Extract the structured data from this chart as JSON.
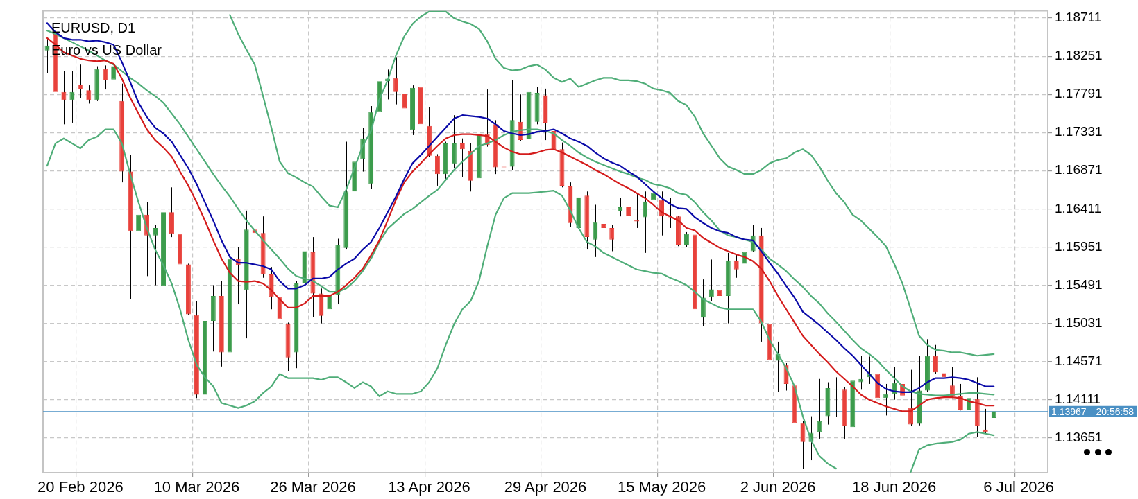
{
  "chart_data": {
    "type": "candlestick",
    "title": "EURUSD, D1",
    "subtitle": "Euro vs US Dollar",
    "categories": [
      null,
      null,
      null,
      null,
      "20 Feb 2026",
      null,
      null,
      null,
      null,
      null,
      null,
      null,
      null,
      null,
      null,
      null,
      null,
      null,
      "10 Mar 2026",
      null,
      null,
      null,
      null,
      null,
      null,
      null,
      null,
      null,
      null,
      null,
      null,
      null,
      "26 Mar 2026",
      null,
      null,
      null,
      null,
      null,
      null,
      null,
      null,
      null,
      null,
      null,
      null,
      null,
      "13 Apr 2026",
      null,
      null,
      null,
      null,
      null,
      null,
      null,
      null,
      null,
      null,
      null,
      null,
      null,
      "29 Apr 2026",
      null,
      null,
      null,
      null,
      null,
      null,
      null,
      null,
      null,
      null,
      null,
      null,
      null,
      "15 May 2026",
      null,
      null,
      null,
      null,
      null,
      null,
      null,
      null,
      null,
      null,
      null,
      null,
      null,
      "2 Jun 2026",
      null,
      null,
      null,
      null,
      null,
      null,
      null,
      null,
      null,
      null,
      null,
      null,
      null,
      "18 Jun 2026",
      null,
      null,
      null,
      null,
      null,
      null,
      null,
      null,
      null,
      null,
      null,
      null,
      null,
      null,
      "6 Jul 2026",
      null,
      null,
      null
    ],
    "ohlc": [
      [
        1.1832,
        1.1846,
        1.1805,
        1.1838
      ],
      [
        1.1852,
        1.1856,
        1.1781,
        1.1782
      ],
      [
        1.1782,
        1.1807,
        1.1743,
        1.1772
      ],
      [
        1.1772,
        1.1807,
        1.1745,
        1.1782
      ],
      [
        1.1791,
        1.1815,
        1.1775,
        1.1785
      ],
      [
        1.1784,
        1.179,
        1.1768,
        1.1772
      ],
      [
        1.1772,
        1.1813,
        1.1771,
        1.181
      ],
      [
        1.181,
        1.1814,
        1.1785,
        1.1796
      ],
      [
        1.1797,
        1.1822,
        1.179,
        1.1813
      ],
      [
        1.1771,
        1.1792,
        1.1673,
        1.1686
      ],
      [
        1.1686,
        1.1706,
        1.1532,
        1.1614
      ],
      [
        1.1614,
        1.1654,
        1.1577,
        1.1634
      ],
      [
        1.1634,
        1.1649,
        1.156,
        1.1609
      ],
      [
        1.1609,
        1.1622,
        1.1549,
        1.1618
      ],
      [
        1.1548,
        1.1639,
        1.1509,
        1.1637
      ],
      [
        1.1637,
        1.1667,
        1.1607,
        1.1611
      ],
      [
        1.1611,
        1.1646,
        1.1562,
        1.1574
      ],
      [
        1.1574,
        1.1575,
        1.1513,
        1.1514
      ],
      [
        1.1513,
        1.153,
        1.1413,
        1.1417
      ],
      [
        1.1417,
        1.1524,
        1.1415,
        1.1506
      ],
      [
        1.1506,
        1.1549,
        1.1469,
        1.1536
      ],
      [
        1.1536,
        1.1554,
        1.1451,
        1.1468
      ],
      [
        1.1468,
        1.1617,
        1.1445,
        1.1581
      ],
      [
        1.1581,
        1.1595,
        1.1526,
        1.1573
      ],
      [
        1.1543,
        1.1639,
        1.1485,
        1.1616
      ],
      [
        1.1616,
        1.1628,
        1.1558,
        1.1612
      ],
      [
        1.1612,
        1.1632,
        1.1558,
        1.1562
      ],
      [
        1.1562,
        1.1571,
        1.152,
        1.1535
      ],
      [
        1.1535,
        1.1545,
        1.1502,
        1.1508
      ],
      [
        1.1502,
        1.1504,
        1.1445,
        1.1462
      ],
      [
        1.1468,
        1.1554,
        1.1449,
        1.1552
      ],
      [
        1.1552,
        1.1628,
        1.1546,
        1.159
      ],
      [
        1.1589,
        1.1607,
        1.1511,
        1.1539
      ],
      [
        1.1539,
        1.1545,
        1.1503,
        1.1512
      ],
      [
        1.152,
        1.1571,
        1.1505,
        1.1537
      ],
      [
        1.1537,
        1.1605,
        1.1526,
        1.1598
      ],
      [
        1.1594,
        1.1722,
        1.1592,
        1.1662
      ],
      [
        1.1662,
        1.1724,
        1.1652,
        1.1698
      ],
      [
        1.1701,
        1.1739,
        1.1686,
        1.1726
      ],
      [
        1.1671,
        1.1765,
        1.1665,
        1.1758
      ],
      [
        1.1758,
        1.1811,
        1.1754,
        1.1795
      ],
      [
        1.1795,
        1.1809,
        1.1773,
        1.1798
      ],
      [
        1.1799,
        1.1824,
        1.1767,
        1.1782
      ],
      [
        1.178,
        1.185,
        1.1762,
        1.1762
      ],
      [
        1.1736,
        1.179,
        1.173,
        1.1787
      ],
      [
        1.1788,
        1.1791,
        1.172,
        1.1743
      ],
      [
        1.1741,
        1.1764,
        1.1704,
        1.1705
      ],
      [
        1.1705,
        1.1707,
        1.1669,
        1.1683
      ],
      [
        1.1683,
        1.1722,
        1.1675,
        1.172
      ],
      [
        1.1695,
        1.1754,
        1.169,
        1.172
      ],
      [
        1.172,
        1.1726,
        1.1679,
        1.1713
      ],
      [
        1.1711,
        1.172,
        1.1662,
        1.1675
      ],
      [
        1.1678,
        1.1741,
        1.1656,
        1.1731
      ],
      [
        1.1731,
        1.1785,
        1.1716,
        1.1718
      ],
      [
        1.1743,
        1.1748,
        1.1683,
        1.1691
      ],
      [
        1.1692,
        1.1713,
        1.1677,
        1.1691
      ],
      [
        1.1692,
        1.1796,
        1.1688,
        1.1748
      ],
      [
        1.1746,
        1.1779,
        1.1723,
        1.1724
      ],
      [
        1.1725,
        1.1786,
        1.1724,
        1.1782
      ],
      [
        1.1746,
        1.1788,
        1.1743,
        1.1781
      ],
      [
        1.1778,
        1.1786,
        1.1724,
        1.1745
      ],
      [
        1.1735,
        1.1739,
        1.1696,
        1.1713
      ],
      [
        1.1713,
        1.1721,
        1.1667,
        1.1669
      ],
      [
        1.1668,
        1.1673,
        1.1619,
        1.1624
      ],
      [
        1.1618,
        1.1658,
        1.1609,
        1.1655
      ],
      [
        1.1657,
        1.1662,
        1.1592,
        1.1607
      ],
      [
        1.1604,
        1.1646,
        1.1583,
        1.1625
      ],
      [
        1.1623,
        1.1635,
        1.1578,
        1.1618
      ],
      [
        1.1618,
        1.1622,
        1.159,
        1.1604
      ],
      [
        1.1638,
        1.1654,
        1.1632,
        1.1643
      ],
      [
        1.1643,
        1.1645,
        1.1618,
        1.1633
      ],
      [
        1.1628,
        1.166,
        1.1618,
        1.1626
      ],
      [
        1.1631,
        1.1662,
        1.1588,
        1.165
      ],
      [
        1.1652,
        1.1686,
        1.1626,
        1.166
      ],
      [
        1.1652,
        1.1662,
        1.1609,
        1.1632
      ],
      [
        1.1632,
        1.1654,
        1.1618,
        1.1631
      ],
      [
        1.1632,
        1.1633,
        1.1596,
        1.1598
      ],
      [
        1.1597,
        1.1613,
        1.1595,
        1.1611
      ],
      [
        1.161,
        1.1645,
        1.1518,
        1.152
      ],
      [
        1.151,
        1.1556,
        1.15,
        1.1534
      ],
      [
        1.1535,
        1.158,
        1.153,
        1.1544
      ],
      [
        1.1543,
        1.1574,
        1.1534,
        1.1536
      ],
      [
        1.1536,
        1.1588,
        1.1503,
        1.1579
      ],
      [
        1.1579,
        1.1586,
        1.1558,
        1.1568
      ],
      [
        1.1575,
        1.1622,
        1.1575,
        1.1589
      ],
      [
        1.159,
        1.1622,
        1.1589,
        1.1609
      ],
      [
        1.1609,
        1.1618,
        1.1481,
        1.1503
      ],
      [
        1.1502,
        1.153,
        1.1457,
        1.1459
      ],
      [
        1.1458,
        1.1481,
        1.142,
        1.1466
      ],
      [
        1.1453,
        1.1455,
        1.1422,
        1.143
      ],
      [
        1.1428,
        1.1439,
        1.1381,
        1.1383
      ],
      [
        1.1383,
        1.1385,
        1.1328,
        1.136
      ],
      [
        1.136,
        1.1391,
        1.1338,
        1.1371
      ],
      [
        1.1372,
        1.1436,
        1.1364,
        1.1385
      ],
      [
        1.1391,
        1.1432,
        1.1381,
        1.1425
      ],
      [
        1.1423,
        1.1438,
        1.139,
        1.1424
      ],
      [
        1.1423,
        1.1426,
        1.1364,
        1.1379
      ],
      [
        1.1378,
        1.1473,
        1.1377,
        1.1434
      ],
      [
        1.1432,
        1.1464,
        1.1423,
        1.1436
      ],
      [
        1.1438,
        1.1463,
        1.143,
        1.1442
      ],
      [
        1.1442,
        1.1453,
        1.1411,
        1.1413
      ],
      [
        1.1413,
        1.143,
        1.1392,
        1.1418
      ],
      [
        1.1418,
        1.145,
        1.1411,
        1.1431
      ],
      [
        1.143,
        1.1464,
        1.1413,
        1.1416
      ],
      [
        1.1401,
        1.1447,
        1.1379,
        1.1381
      ],
      [
        1.1382,
        1.1464,
        1.138,
        1.1422
      ],
      [
        1.1422,
        1.1484,
        1.142,
        1.1464
      ],
      [
        1.1464,
        1.1477,
        1.1442,
        1.1444
      ],
      [
        1.1443,
        1.1453,
        1.1428,
        1.1438
      ],
      [
        1.1428,
        1.145,
        1.1413,
        1.1415
      ],
      [
        1.1415,
        1.143,
        1.1398,
        1.1399
      ],
      [
        1.1399,
        1.1423,
        1.1398,
        1.1413
      ],
      [
        1.1412,
        1.1438,
        1.1366,
        1.1379
      ],
      [
        1.1375,
        1.14,
        1.137,
        1.1372
      ],
      [
        1.1389,
        1.1399,
        1.1387,
        1.1397
      ],
      null,
      null,
      null,
      null,
      null,
      null
    ],
    "colors": [
      "#3c9c4c",
      "#e8413b",
      "#e8413b",
      "#3c9c4c",
      "#e8413b",
      "#e8413b",
      "#3c9c4c",
      "#e8413b",
      "#3c9c4c",
      "#e8413b",
      "#e8413b",
      "#3c9c4c",
      "#e8413b",
      "#3c9c4c",
      "#3c9c4c",
      "#e8413b",
      "#e8413b",
      "#e8413b",
      "#e8413b",
      "#3c9c4c",
      "#3c9c4c",
      "#e8413b",
      "#3c9c4c",
      "#e8413b",
      "#3c9c4c",
      "#e8413b",
      "#e8413b",
      "#e8413b",
      "#e8413b",
      "#e8413b",
      "#3c9c4c",
      "#3c9c4c",
      "#e8413b",
      "#e8413b",
      "#3c9c4c",
      "#3c9c4c",
      "#3c9c4c",
      "#3c9c4c",
      "#3c9c4c",
      "#3c9c4c",
      "#3c9c4c",
      "#3c9c4c",
      "#e8413b",
      "#e8413b",
      "#3c9c4c",
      "#e8413b",
      "#e8413b",
      "#e8413b",
      "#3c9c4c",
      "#3c9c4c",
      "#e8413b",
      "#e8413b",
      "#3c9c4c",
      "#e8413b",
      "#e8413b",
      "#e8413b",
      "#3c9c4c",
      "#e8413b",
      "#3c9c4c",
      "#3c9c4c",
      "#e8413b",
      "#e8413b",
      "#e8413b",
      "#e8413b",
      "#3c9c4c",
      "#e8413b",
      "#3c9c4c",
      "#e8413b",
      "#e8413b",
      "#3c9c4c",
      "#e8413b",
      "#e8413b",
      "#3c9c4c",
      "#3c9c4c",
      "#e8413b",
      "#e8413b",
      "#e8413b",
      "#3c9c4c",
      "#e8413b",
      "#3c9c4c",
      "#3c9c4c",
      "#e8413b",
      "#3c9c4c",
      "#e8413b",
      "#3c9c4c",
      "#3c9c4c",
      "#e8413b",
      "#e8413b",
      "#3c9c4c",
      "#e8413b",
      "#e8413b",
      "#e8413b",
      "#3c9c4c",
      "#3c9c4c",
      "#3c9c4c",
      "#3c9c4c",
      "#e8413b",
      "#3c9c4c",
      "#3c9c4c",
      "#3c9c4c",
      "#e8413b",
      "#3c9c4c",
      "#3c9c4c",
      "#e8413b",
      "#e8413b",
      "#3c9c4c",
      "#3c9c4c",
      "#e8413b",
      "#e8413b",
      "#e8413b",
      "#e8413b",
      "#3c9c4c",
      "#e8413b",
      "#e8413b",
      "#3c9c4c",
      null,
      null,
      null,
      null,
      null,
      null
    ],
    "series": [
      {
        "type": "line",
        "color": "#0a0aa8",
        "values": [
          1.1865,
          1.1854,
          1.1847,
          1.1845,
          1.1845,
          1.1843,
          1.1844,
          1.1842,
          1.1839,
          1.1818,
          1.1794,
          1.1769,
          1.1752,
          1.1739,
          1.1732,
          1.1722,
          1.1706,
          1.169,
          1.1671,
          1.1649,
          1.1627,
          1.1603,
          1.1583,
          1.1576,
          1.1576,
          1.1574,
          1.1572,
          1.1568,
          1.1554,
          1.1545,
          1.1545,
          1.1549,
          1.1557,
          1.1557,
          1.1559,
          1.1568,
          1.1575,
          1.1581,
          1.1592,
          1.1601,
          1.1618,
          1.1637,
          1.1656,
          1.1677,
          1.1696,
          1.1706,
          1.1717,
          1.1728,
          1.1739,
          1.175,
          1.1754,
          1.1753,
          1.1752,
          1.175,
          1.1743,
          1.1735,
          1.1732,
          1.173,
          1.1731,
          1.1734,
          1.1735,
          1.1737,
          1.1732,
          1.1726,
          1.1722,
          1.1717,
          1.1709,
          1.1702,
          1.1697,
          1.1693,
          1.1686,
          1.168,
          1.1671,
          1.1662,
          1.1654,
          1.1647,
          1.1642,
          1.1641,
          1.1631,
          1.1624,
          1.1618,
          1.1614,
          1.1612,
          1.1607,
          1.1604,
          1.1603,
          1.159,
          1.1576,
          1.1563,
          1.1548,
          1.1534,
          1.1517,
          1.1509,
          1.1501,
          1.1492,
          1.1483,
          1.1473,
          1.1464,
          1.1453,
          1.1442,
          1.1431,
          1.1424,
          1.1421,
          1.142,
          1.142,
          1.1425,
          1.1432,
          1.1437,
          1.1437,
          1.1438,
          1.1437,
          1.1435,
          1.1431,
          1.1427,
          1.1427,
          null,
          null,
          null,
          null,
          null,
          null
        ]
      },
      {
        "type": "line",
        "color": "#d41c1c",
        "values": [
          1.1847,
          1.1839,
          1.183,
          1.1826,
          1.1822,
          1.182,
          1.1819,
          1.182,
          1.1816,
          1.1798,
          1.1775,
          1.1756,
          1.1737,
          1.1724,
          1.1715,
          1.1704,
          1.1686,
          1.1669,
          1.1649,
          1.1627,
          1.1603,
          1.1581,
          1.1564,
          1.1554,
          1.1553,
          1.1554,
          1.1551,
          1.1543,
          1.1532,
          1.1522,
          1.1522,
          1.1527,
          1.1536,
          1.1536,
          1.1536,
          1.1541,
          1.1549,
          1.1558,
          1.1569,
          1.1585,
          1.1603,
          1.1627,
          1.1652,
          1.1673,
          1.1686,
          1.1696,
          1.1707,
          1.1717,
          1.1726,
          1.173,
          1.1731,
          1.1731,
          1.173,
          1.1729,
          1.1722,
          1.1715,
          1.171,
          1.1707,
          1.1707,
          1.1709,
          1.1712,
          1.1713,
          1.1709,
          1.1704,
          1.1699,
          1.1694,
          1.1688,
          1.1683,
          1.1677,
          1.1671,
          1.1666,
          1.166,
          1.1654,
          1.1646,
          1.1637,
          1.1632,
          1.1627,
          1.1618,
          1.1615,
          1.1606,
          1.16,
          1.1594,
          1.159,
          1.1586,
          1.1583,
          1.1578,
          1.1569,
          1.1554,
          1.1536,
          1.152,
          1.1504,
          1.1488,
          1.1477,
          1.1466,
          1.1456,
          1.1445,
          1.1436,
          1.1427,
          1.1417,
          1.1411,
          1.1407,
          1.1403,
          1.14,
          1.1397,
          1.1397,
          1.1404,
          1.1411,
          1.1413,
          1.1414,
          1.1414,
          1.1413,
          1.1409,
          1.1407,
          1.1404,
          1.1404,
          null,
          null,
          null,
          null,
          null,
          null
        ]
      },
      {
        "type": "line",
        "color": "#4fad78",
        "values": [
          1.1856,
          1.1852,
          1.1847,
          1.1842,
          1.1837,
          1.1832,
          1.1826,
          1.182,
          1.1815,
          1.1807,
          1.1799,
          1.1792,
          1.1784,
          1.1777,
          1.1769,
          1.1756,
          1.1743,
          1.1728,
          1.1713,
          1.1698,
          1.1683,
          1.1669,
          1.1656,
          1.1641,
          1.1627,
          1.1615,
          1.1603,
          1.1592,
          1.1581,
          1.1569,
          1.156,
          1.1557,
          1.1554,
          1.1548,
          1.1541,
          1.1541,
          1.1545,
          1.1554,
          1.1566,
          1.1581,
          1.1601,
          1.1617,
          1.1626,
          1.1635,
          1.1641,
          1.1649,
          1.1657,
          1.1664,
          1.1676,
          1.1688,
          1.1698,
          1.1707,
          1.1717,
          1.172,
          1.1724,
          1.173,
          1.1734,
          1.1736,
          1.1737,
          1.1737,
          1.1735,
          1.1732,
          1.1724,
          1.1717,
          1.1709,
          1.1703,
          1.1698,
          1.1694,
          1.169,
          1.1686,
          1.1683,
          1.1679,
          1.1676,
          1.1671,
          1.1669,
          1.1666,
          1.166,
          1.1658,
          1.1649,
          1.1637,
          1.1627,
          1.1615,
          1.1609,
          1.1607,
          1.1604,
          1.1601,
          1.1592,
          1.1581,
          1.1574,
          1.1566,
          1.1556,
          1.1547,
          1.1536,
          1.1527,
          1.1515,
          1.1505,
          1.1494,
          1.1483,
          1.1473,
          1.1466,
          1.1458,
          1.1447,
          1.1437,
          1.1427,
          1.1421,
          1.1418,
          1.1417,
          1.1416,
          1.1416,
          1.1417,
          1.1418,
          1.1419,
          1.1419,
          1.1418,
          1.1417,
          null,
          null,
          null,
          null,
          null,
          null
        ]
      },
      {
        "type": "line",
        "color": "#4fad78",
        "values": [
          null,
          null,
          null,
          null,
          null,
          null,
          null,
          null,
          null,
          null,
          null,
          null,
          null,
          null,
          null,
          null,
          null,
          null,
          null,
          null,
          null,
          null,
          1.1875,
          1.1852,
          1.1833,
          1.1815,
          1.1777,
          1.1739,
          1.1698,
          1.1684,
          1.1679,
          1.1673,
          1.1668,
          1.1656,
          1.1645,
          1.1643,
          1.1664,
          1.169,
          1.1717,
          1.1735,
          1.1773,
          1.1796,
          1.1826,
          1.1849,
          1.1864,
          1.1873,
          1.1879,
          1.1879,
          1.1879,
          1.1871,
          1.1867,
          1.1864,
          1.1858,
          1.1843,
          1.1822,
          1.1811,
          1.1808,
          1.1809,
          1.1813,
          1.1815,
          1.1809,
          1.1799,
          1.1794,
          1.1798,
          1.1788,
          1.1792,
          1.1796,
          1.1799,
          1.1799,
          1.1796,
          1.1796,
          1.1795,
          1.1792,
          1.1786,
          1.1784,
          1.1781,
          1.1771,
          1.1766,
          1.1752,
          1.1732,
          1.1717,
          1.1702,
          1.1692,
          1.1688,
          1.1683,
          1.1683,
          1.1688,
          1.1696,
          1.17,
          1.1702,
          1.1709,
          1.1713,
          1.1706,
          1.1692,
          1.1675,
          1.166,
          1.1649,
          1.1634,
          1.1627,
          1.1617,
          1.1607,
          1.1596,
          1.1575,
          1.1551,
          1.152,
          1.1488,
          1.1477,
          1.1471,
          1.147,
          1.1468,
          1.1468,
          1.1466,
          1.1464,
          1.1465,
          1.1466,
          null,
          null,
          null,
          null,
          null,
          null
        ]
      },
      {
        "type": "line",
        "color": "#4fad78",
        "values": [
          1.1693,
          1.172,
          1.1726,
          1.172,
          1.1714,
          1.1724,
          1.1728,
          1.1737,
          1.1737,
          1.172,
          1.1683,
          1.1649,
          1.1618,
          1.1592,
          1.1573,
          1.1551,
          1.152,
          1.1483,
          1.1453,
          1.1438,
          1.1427,
          1.1407,
          1.1404,
          1.1401,
          1.1404,
          1.1409,
          1.1419,
          1.1427,
          1.1442,
          1.1437,
          1.1437,
          1.1437,
          1.1437,
          1.1435,
          1.1438,
          1.1438,
          1.1432,
          1.1425,
          1.1432,
          1.1427,
          1.1415,
          1.1421,
          1.1418,
          1.1418,
          1.1418,
          1.1421,
          1.1432,
          1.1449,
          1.1477,
          1.1502,
          1.152,
          1.153,
          1.1554,
          1.1596,
          1.1634,
          1.1654,
          1.166,
          1.166,
          1.166,
          1.1661,
          1.1662,
          1.1663,
          1.1657,
          1.1639,
          1.1618,
          1.1601,
          1.1596,
          1.1588,
          1.1583,
          1.1578,
          1.1573,
          1.1568,
          1.1566,
          1.1564,
          1.1563,
          1.1558,
          1.1554,
          1.1549,
          1.1541,
          1.1532,
          1.1527,
          1.1522,
          1.152,
          1.152,
          1.152,
          1.152,
          1.1505,
          1.1483,
          1.1466,
          1.1449,
          1.1427,
          1.1391,
          1.1362,
          1.1343,
          1.1334,
          1.1328,
          null,
          null,
          null,
          null,
          null,
          null,
          null,
          null,
          1.1324,
          1.1351,
          1.1356,
          1.1358,
          1.1359,
          1.136,
          1.1363,
          1.137,
          1.1372,
          1.137,
          1.1368,
          null,
          null,
          null,
          null,
          null,
          null
        ]
      }
    ],
    "ylim": [
      1.1323,
      1.188
    ],
    "yticks": [
      1.13651,
      1.14111,
      1.14571,
      1.15031,
      1.15491,
      1.15951,
      1.16411,
      1.16871,
      1.17331,
      1.17791,
      1.18251,
      1.18711
    ],
    "ref_lines": [
      {
        "axis": "y",
        "value": 1.13967,
        "label": "1.13967",
        "color": "#4a90c4"
      }
    ],
    "annotations": [
      "20:56:58"
    ],
    "grid": true,
    "legend": false,
    "line_style": "solid",
    "marker": "none"
  }
}
